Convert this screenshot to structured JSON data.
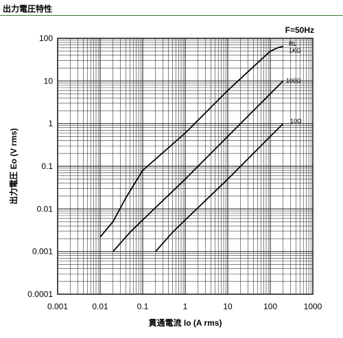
{
  "page_title": "出力電圧特性",
  "chart_data": {
    "type": "line",
    "xscale": "log",
    "yscale": "log",
    "xlim": [
      0.001,
      1000
    ],
    "ylim": [
      0.0001,
      100
    ],
    "xlabel": "貫通電流 Io (A rms)",
    "ylabel": "出力電圧 Eo (V rms)",
    "annotation": "F=50Hz",
    "legend_heading": "RL",
    "grid": true,
    "x_ticks": [
      "0.001",
      "0.01",
      "0.1",
      "1",
      "10",
      "100",
      "1000"
    ],
    "y_ticks": [
      "100",
      "10",
      "1",
      "0.1",
      "0.01",
      "0.001",
      "0.0001"
    ],
    "series": [
      {
        "name": "1KΩ",
        "x": [
          0.01,
          0.02,
          0.04,
          0.1,
          1,
          10,
          100,
          150,
          200
        ],
        "y": [
          0.0022,
          0.005,
          0.018,
          0.08,
          0.6,
          6,
          50,
          60,
          65
        ]
      },
      {
        "name": "100Ω",
        "x": [
          0.02,
          0.05,
          0.1,
          1,
          10,
          100,
          200
        ],
        "y": [
          0.001,
          0.0028,
          0.0055,
          0.05,
          0.5,
          5,
          10
        ]
      },
      {
        "name": "10Ω",
        "x": [
          0.2,
          0.5,
          1,
          10,
          100,
          200
        ],
        "y": [
          0.001,
          0.0028,
          0.0055,
          0.05,
          0.5,
          1
        ]
      }
    ]
  },
  "colors": {
    "line": "#000000",
    "grid": "#333333",
    "header_rule": "#2e7d32"
  }
}
